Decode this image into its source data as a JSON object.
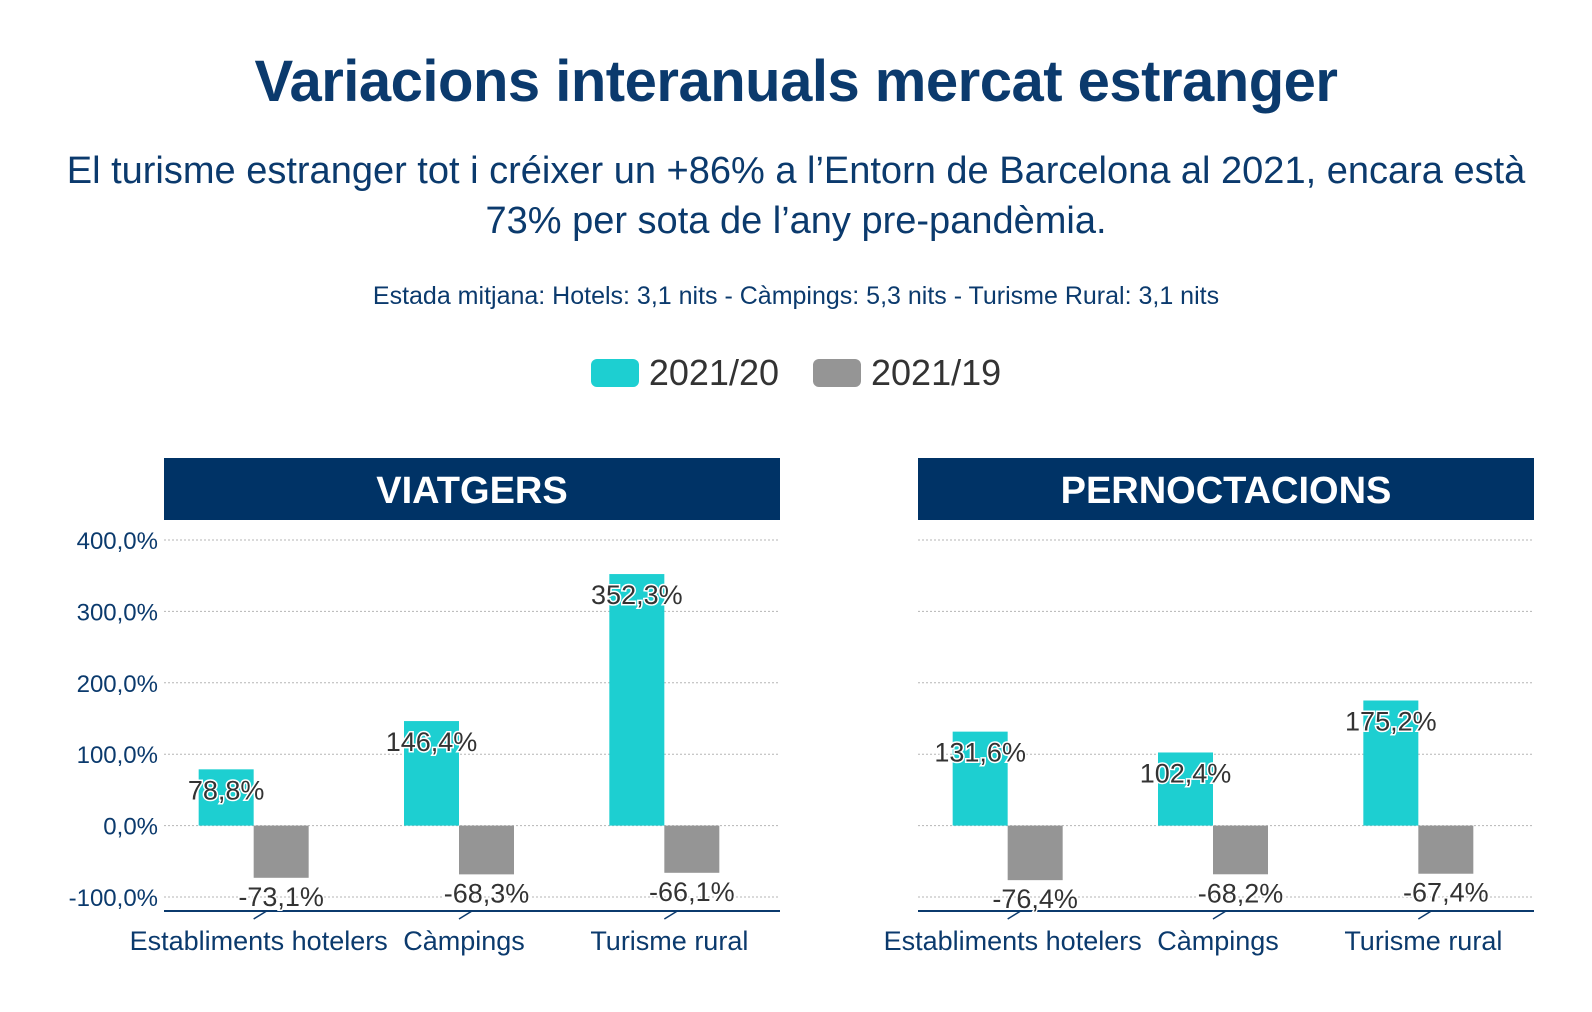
{
  "title": "Variacions interanuals mercat estranger",
  "subtitle": "El turisme estranger tot i créixer un +86% a l’Entorn de Barcelona al 2021, encara està 73% per sota de l’any pre-pandèmia.",
  "note": "Estada mitjana: Hotels: 3,1 nits - Càmpings: 5,3 nits - Turisme Rural: 3,1 nits",
  "legend": [
    {
      "label": "2021/20",
      "color": "#1dcfd1"
    },
    {
      "label": "2021/19",
      "color": "#959595"
    }
  ],
  "colors": {
    "header_bg": "#003366",
    "axis_text": "#0b3a6d",
    "label_text": "#333333"
  },
  "chart_data": [
    {
      "type": "bar",
      "title": "VIATGERS",
      "categories": [
        "Establiments hotelers",
        "Càmpings",
        "Turisme rural"
      ],
      "series": [
        {
          "name": "2021/20",
          "values": [
            78.8,
            146.4,
            352.3
          ],
          "labels": [
            "78,8%",
            "146,4%",
            "352,3%"
          ]
        },
        {
          "name": "2021/19",
          "values": [
            -73.1,
            -68.3,
            -66.1
          ],
          "labels": [
            "-73,1%",
            "-68,3%",
            "-66,1%"
          ]
        }
      ],
      "ylim": [
        -100,
        400
      ],
      "yticks": [
        "400,0%",
        "300,0%",
        "200,0%",
        "100,0%",
        "0,0%",
        "-100,0%"
      ],
      "grid": true
    },
    {
      "type": "bar",
      "title": "PERNOCTACIONS",
      "categories": [
        "Establiments hotelers",
        "Càmpings",
        "Turisme rural"
      ],
      "series": [
        {
          "name": "2021/20",
          "values": [
            131.6,
            102.4,
            175.2
          ],
          "labels": [
            "131,6%",
            "102,4%",
            "175,2%"
          ]
        },
        {
          "name": "2021/19",
          "values": [
            -76.4,
            -68.2,
            -67.4
          ],
          "labels": [
            "-76,4%",
            "-68,2%",
            "-67,4%"
          ]
        }
      ],
      "ylim": [
        -100,
        400
      ],
      "grid": true
    }
  ]
}
